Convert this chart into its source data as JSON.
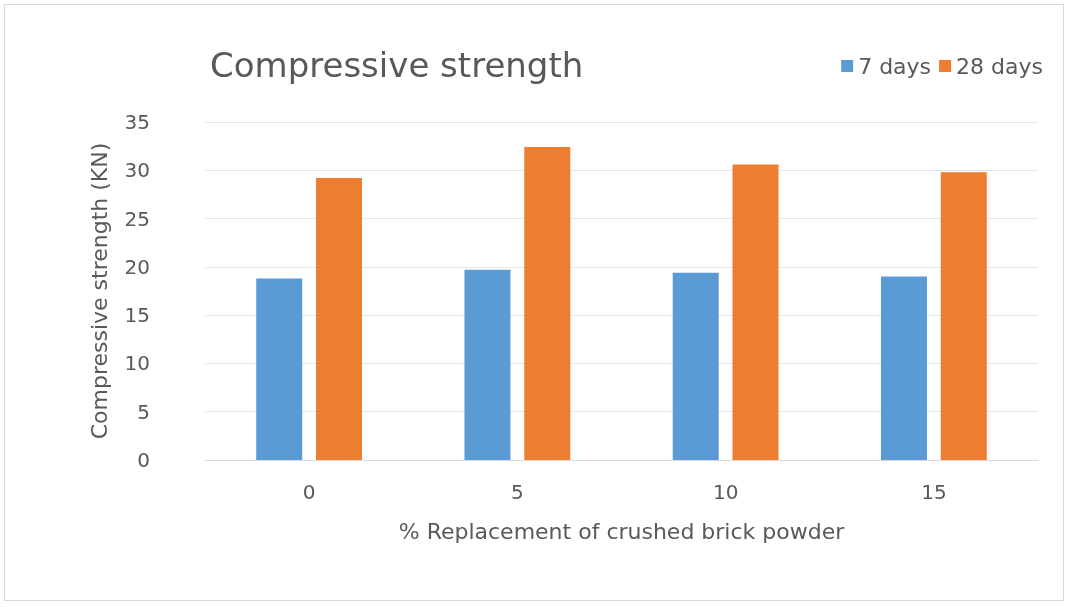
{
  "chart_data": {
    "type": "bar",
    "title": "Compressive strength",
    "xlabel": "% Replacement of crushed brick powder",
    "ylabel": "Compressive strength (KN)",
    "categories": [
      "0",
      "5",
      "10",
      "15"
    ],
    "series": [
      {
        "name": "7 days",
        "color": "#5b9bd5",
        "values": [
          18.8,
          19.7,
          19.4,
          19.0
        ]
      },
      {
        "name": "28 days",
        "color": "#ed7d31",
        "values": [
          29.2,
          32.4,
          30.6,
          29.8
        ]
      }
    ],
    "ylim": [
      0,
      35
    ],
    "yticks": [
      0,
      5,
      10,
      15,
      20,
      25,
      30,
      35
    ],
    "grid": "y",
    "legend": "top right"
  }
}
